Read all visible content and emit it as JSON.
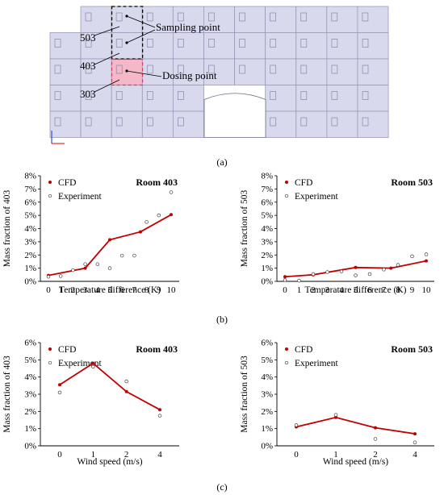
{
  "figure": {
    "building": {
      "labels": {
        "sampling": "Sampling point",
        "dosing": "Dosing point"
      },
      "rooms": [
        "503",
        "403",
        "303"
      ],
      "colors": {
        "room_fill": "#d9d9ee",
        "room_stroke": "#9a9ab8",
        "dosing_fill": "#f4b8c8"
      }
    },
    "panel_labels": [
      "(a)",
      "(b)",
      "(c)"
    ]
  },
  "chart_data": [
    {
      "type": "line",
      "title": "Room 403",
      "xlabel": "Temperature difference (K)",
      "ylabel": "Mass fraction of 403",
      "x_ticks": [
        "0",
        "1",
        "2",
        "3",
        "4",
        "5",
        "6",
        "7",
        "8",
        "9",
        "10"
      ],
      "y_ticks": [
        "0%",
        "1%",
        "2%",
        "3%",
        "4%",
        "5%",
        "6%",
        "7%",
        "8%"
      ],
      "xlim": [
        0,
        10
      ],
      "ylim": [
        0,
        8
      ],
      "legend": {
        "placement": "top-left",
        "line": "CFD",
        "scatter": "Experiment"
      },
      "series": [
        {
          "name": "CFD",
          "kind": "line",
          "color": "#c00000",
          "x": [
            0,
            3,
            5,
            7.5,
            10
          ],
          "y": [
            0.45,
            1.0,
            3.15,
            3.75,
            5.05
          ]
        },
        {
          "name": "Experiment",
          "kind": "scatter",
          "x": [
            0,
            1,
            2,
            3,
            4,
            5,
            6,
            7,
            8,
            9,
            10
          ],
          "y": [
            0.35,
            0.4,
            0.85,
            1.3,
            1.3,
            1.0,
            1.95,
            1.95,
            4.5,
            5.0,
            6.75
          ]
        }
      ]
    },
    {
      "type": "line",
      "title": "Room 503",
      "xlabel": "Temperature difference (K)",
      "ylabel": "Mass fraction of 503",
      "x_ticks": [
        "0",
        "1",
        "2",
        "3",
        "4",
        "5",
        "6",
        "7",
        "8",
        "9",
        "10"
      ],
      "y_ticks": [
        "0%",
        "1%",
        "2%",
        "3%",
        "4%",
        "5%",
        "6%",
        "7%",
        "8%"
      ],
      "xlim": [
        0,
        10
      ],
      "ylim": [
        0,
        8
      ],
      "legend": {
        "placement": "top-left",
        "line": "CFD",
        "scatter": "Experiment"
      },
      "series": [
        {
          "name": "CFD",
          "kind": "line",
          "color": "#c00000",
          "x": [
            0,
            2,
            5,
            7.5,
            10
          ],
          "y": [
            0.35,
            0.5,
            1.05,
            1.0,
            1.55
          ]
        },
        {
          "name": "Experiment",
          "kind": "scatter",
          "x": [
            0,
            1,
            2,
            3,
            4,
            5,
            6,
            7,
            8,
            9,
            10
          ],
          "y": [
            0.1,
            0.05,
            0.55,
            0.7,
            0.75,
            0.45,
            0.55,
            0.9,
            1.25,
            1.9,
            2.05
          ]
        }
      ]
    },
    {
      "type": "line",
      "title": "Room 403",
      "xlabel": "Wind speed (m/s)",
      "ylabel": "Mass fraction of 403",
      "x_ticks": [
        "0",
        "1",
        "2",
        "4"
      ],
      "y_ticks": [
        "0%",
        "1%",
        "2%",
        "3%",
        "4%",
        "5%",
        "6%"
      ],
      "ylim": [
        0,
        6
      ],
      "legend": {
        "placement": "top-left",
        "line": "CFD",
        "scatter": "Experiment"
      },
      "series": [
        {
          "name": "CFD",
          "kind": "line",
          "color": "#c00000",
          "x": [
            "0",
            "1",
            "2",
            "4"
          ],
          "y": [
            3.55,
            4.8,
            3.15,
            2.1
          ]
        },
        {
          "name": "Experiment",
          "kind": "scatter",
          "x": [
            "0",
            "1",
            "2",
            "4"
          ],
          "y": [
            3.1,
            4.6,
            3.75,
            1.75
          ]
        }
      ]
    },
    {
      "type": "line",
      "title": "Room 503",
      "xlabel": "Wind speed (m/s)",
      "ylabel": "Mass fraction of 503",
      "x_ticks": [
        "0",
        "1",
        "2",
        "4"
      ],
      "y_ticks": [
        "0%",
        "1%",
        "2%",
        "3%",
        "4%",
        "5%",
        "6%"
      ],
      "ylim": [
        0,
        6
      ],
      "legend": {
        "placement": "top-left",
        "line": "CFD",
        "scatter": "Experiment"
      },
      "series": [
        {
          "name": "CFD",
          "kind": "line",
          "color": "#c00000",
          "x": [
            "0",
            "1",
            "2",
            "4"
          ],
          "y": [
            1.1,
            1.65,
            1.05,
            0.7
          ]
        },
        {
          "name": "Experiment",
          "kind": "scatter",
          "x": [
            "0",
            "1",
            "2",
            "4"
          ],
          "y": [
            1.2,
            1.8,
            0.4,
            0.2
          ]
        }
      ]
    }
  ]
}
